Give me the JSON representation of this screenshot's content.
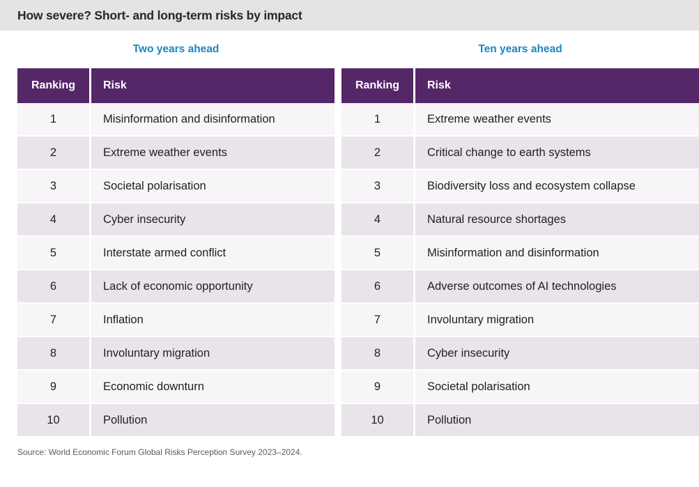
{
  "page": {
    "title": "How severe? Short- and long-term risks by impact",
    "source": "Source: World Economic Forum Global Risks Perception Survey 2023–2024."
  },
  "colors": {
    "header_purple": "#552768",
    "accent_blue": "#1b87c0",
    "title_band_bg": "#e5e4e4",
    "row_light": "#f7f5f7",
    "row_dark": "#e9e4ea"
  },
  "tables": [
    {
      "caption": "Two years ahead",
      "columns": [
        "Ranking",
        "Risk"
      ],
      "rows": [
        {
          "ranking": "1",
          "risk": "Misinformation and disinformation"
        },
        {
          "ranking": "2",
          "risk": "Extreme weather events"
        },
        {
          "ranking": "3",
          "risk": "Societal polarisation"
        },
        {
          "ranking": "4",
          "risk": "Cyber insecurity"
        },
        {
          "ranking": "5",
          "risk": "Interstate armed conflict"
        },
        {
          "ranking": "6",
          "risk": "Lack of economic opportunity"
        },
        {
          "ranking": "7",
          "risk": "Inflation"
        },
        {
          "ranking": "8",
          "risk": "Involuntary migration"
        },
        {
          "ranking": "9",
          "risk": "Economic downturn"
        },
        {
          "ranking": "10",
          "risk": "Pollution"
        }
      ]
    },
    {
      "caption": "Ten years ahead",
      "columns": [
        "Ranking",
        "Risk"
      ],
      "rows": [
        {
          "ranking": "1",
          "risk": "Extreme weather events"
        },
        {
          "ranking": "2",
          "risk": "Critical change to earth systems"
        },
        {
          "ranking": "3",
          "risk": "Biodiversity loss and ecosystem collapse"
        },
        {
          "ranking": "4",
          "risk": "Natural resource shortages"
        },
        {
          "ranking": "5",
          "risk": "Misinformation and disinformation"
        },
        {
          "ranking": "6",
          "risk": "Adverse outcomes of AI technologies"
        },
        {
          "ranking": "7",
          "risk": "Involuntary migration"
        },
        {
          "ranking": "8",
          "risk": "Cyber insecurity"
        },
        {
          "ranking": "9",
          "risk": "Societal polarisation"
        },
        {
          "ranking": "10",
          "risk": "Pollution"
        }
      ]
    }
  ],
  "chart_data": [
    {
      "type": "table",
      "title": "Two years ahead",
      "columns": [
        "Ranking",
        "Risk"
      ],
      "rows": [
        [
          1,
          "Misinformation and disinformation"
        ],
        [
          2,
          "Extreme weather events"
        ],
        [
          3,
          "Societal polarisation"
        ],
        [
          4,
          "Cyber insecurity"
        ],
        [
          5,
          "Interstate armed conflict"
        ],
        [
          6,
          "Lack of economic opportunity"
        ],
        [
          7,
          "Inflation"
        ],
        [
          8,
          "Involuntary migration"
        ],
        [
          9,
          "Economic downturn"
        ],
        [
          10,
          "Pollution"
        ]
      ]
    },
    {
      "type": "table",
      "title": "Ten years ahead",
      "columns": [
        "Ranking",
        "Risk"
      ],
      "rows": [
        [
          1,
          "Extreme weather events"
        ],
        [
          2,
          "Critical change to earth systems"
        ],
        [
          3,
          "Biodiversity loss and ecosystem collapse"
        ],
        [
          4,
          "Natural resource shortages"
        ],
        [
          5,
          "Misinformation and disinformation"
        ],
        [
          6,
          "Adverse outcomes of AI technologies"
        ],
        [
          7,
          "Involuntary migration"
        ],
        [
          8,
          "Cyber insecurity"
        ],
        [
          9,
          "Societal polarisation"
        ],
        [
          10,
          "Pollution"
        ]
      ]
    }
  ]
}
